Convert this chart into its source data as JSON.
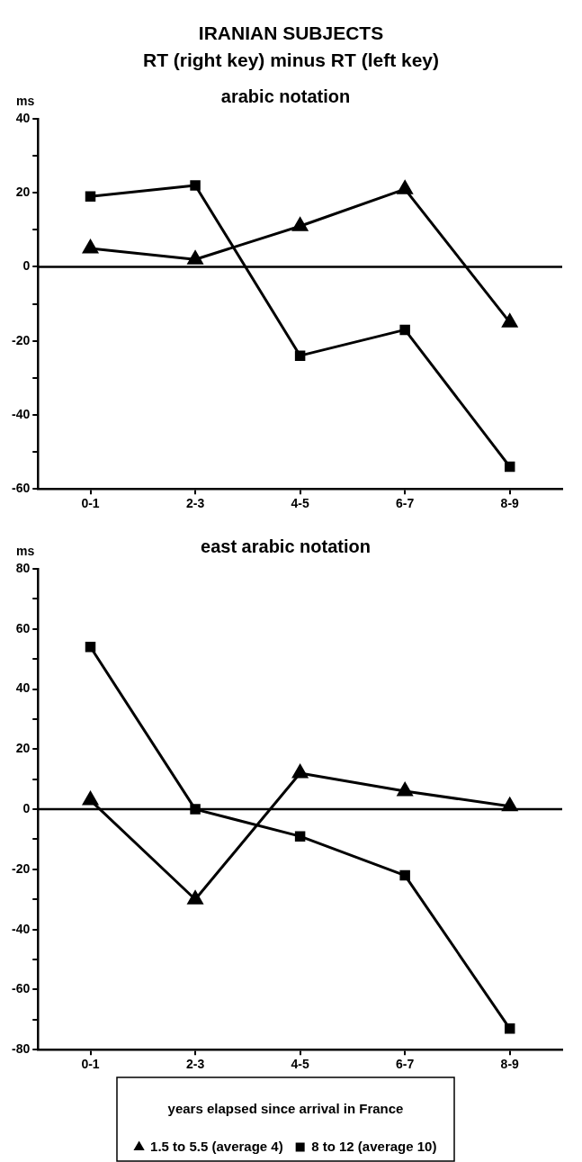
{
  "chart_data": [
    {
      "type": "line",
      "title": "arabic notation",
      "annotations": [
        "IRANIAN SUBJECTS",
        "RT (right key) minus RT (left key)"
      ],
      "ylabel": "ms",
      "categories": [
        "0-1",
        "2-3",
        "4-5",
        "6-7",
        "8-9"
      ],
      "series": [
        {
          "color": "#000000",
          "marker": "triangle",
          "values": [
            5,
            2,
            11,
            21,
            -15
          ]
        },
        {
          "color": "#000000",
          "marker": "square",
          "values": [
            19,
            22,
            -24,
            -17,
            -54
          ]
        }
      ],
      "ylim": [
        -60,
        40
      ],
      "yticks": [
        -60,
        {
          "value": -50,
          "label": null
        },
        -40,
        {
          "value": -30,
          "label": null
        },
        -20,
        {
          "value": -10,
          "label": null
        },
        0,
        {
          "value": 10,
          "label": null
        },
        20,
        {
          "value": 30,
          "label": null
        },
        40
      ],
      "ref_lines": [
        {
          "axis": "y",
          "value": 0,
          "color": "#000000"
        }
      ],
      "grid": false,
      "legend": false,
      "line_style": "solid"
    },
    {
      "type": "line",
      "title": "east arabic notation",
      "ylabel": "ms",
      "categories": [
        "0-1",
        "2-3",
        "4-5",
        "6-7",
        "8-9"
      ],
      "series": [
        {
          "name": "1.5 to 5.5 (average 4)",
          "color": "#000000",
          "marker": "triangle",
          "values": [
            3,
            -30,
            12,
            6,
            1
          ]
        },
        {
          "name": "8 to 12 (average 10)",
          "color": "#000000",
          "marker": "square",
          "values": [
            54,
            0,
            -9,
            -22,
            -73
          ]
        }
      ],
      "ylim": [
        -80,
        80
      ],
      "yticks": [
        -80,
        {
          "value": -70,
          "label": null
        },
        -60,
        {
          "value": -50,
          "label": null
        },
        -40,
        {
          "value": -30,
          "label": null
        },
        -20,
        {
          "value": -10,
          "label": null
        },
        0,
        {
          "value": 10,
          "label": null
        },
        20,
        {
          "value": 30,
          "label": null
        },
        40,
        {
          "value": 50,
          "label": null
        },
        60,
        {
          "value": 70,
          "label": null
        },
        80
      ],
      "ref_lines": [
        {
          "axis": "y",
          "value": 0,
          "color": "#000000"
        }
      ],
      "grid": false,
      "legend": "bottom",
      "legend_title": "years elapsed since arrival in France",
      "line_style": "solid"
    }
  ]
}
